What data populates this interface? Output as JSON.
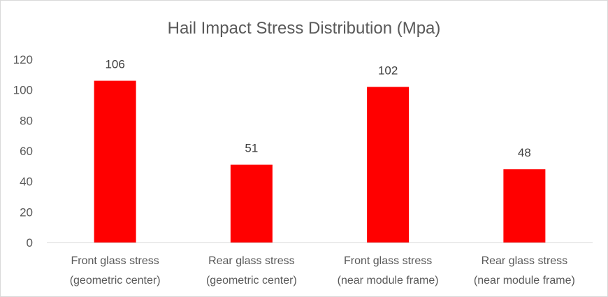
{
  "chart_data": {
    "type": "bar",
    "title": "Hail Impact Stress Distribution (Mpa)",
    "xlabel": "",
    "ylabel": "",
    "categories": [
      [
        "Front glass stress",
        "(geometric center)"
      ],
      [
        "Rear glass stress",
        "(geometric center)"
      ],
      [
        "Front glass stress",
        "(near module frame)"
      ],
      [
        "Rear glass stress",
        "(near module frame)"
      ]
    ],
    "values": [
      106,
      51,
      102,
      48
    ],
    "data_labels": [
      "106",
      "51",
      "102",
      "48"
    ],
    "ylim": [
      0,
      120
    ],
    "yticks": [
      "0",
      "20",
      "40",
      "60",
      "80",
      "100",
      "120"
    ],
    "grid": false,
    "legend": "none",
    "colors": {
      "bar": "#ff0000",
      "axis": "#d9d9d9"
    }
  }
}
